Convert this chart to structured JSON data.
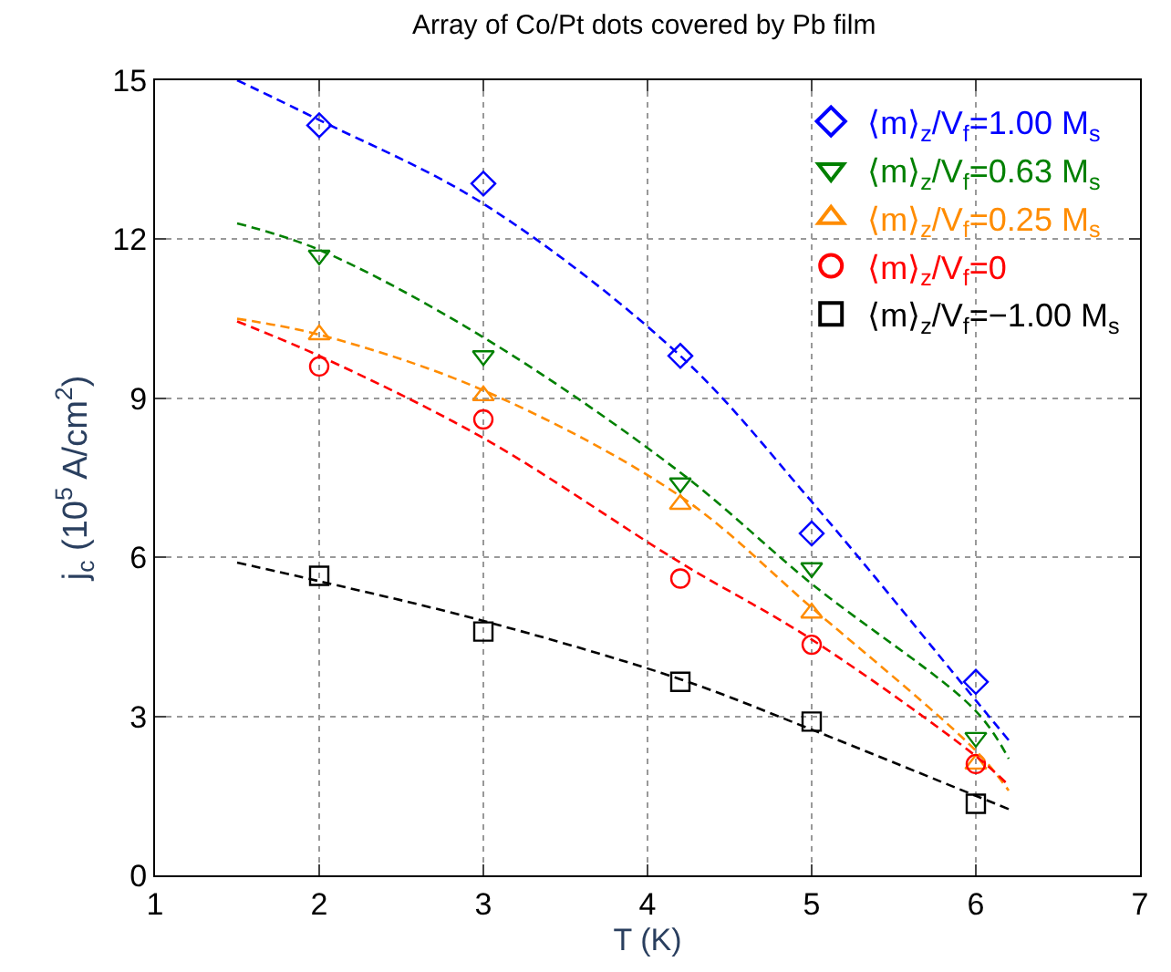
{
  "chart_data": {
    "type": "scatter",
    "title": "Array of Co/Pt dots covered by Pb film",
    "xlabel": "T (K)",
    "ylabel": "j$_{c}$ (10$^{5}$ A/cm$^{2}$)",
    "x": [
      2,
      3,
      4.2,
      5,
      6
    ],
    "series": [
      {
        "name": "⟨m⟩$_{z}$/V$_{f}$=1.00 M$_{s}$",
        "color": "#0000ff",
        "marker": "diamond",
        "values": [
          14.15,
          13.05,
          9.8,
          6.45,
          3.65
        ]
      },
      {
        "name": "⟨m⟩$_{z}$/V$_{f}$=0.63 M$_{s}$",
        "color": "#008000",
        "marker": "triangle-down",
        "values": [
          11.7,
          9.8,
          7.4,
          5.8,
          2.6
        ]
      },
      {
        "name": "⟨m⟩$_{z}$/V$_{f}$=0.25 M$_{s}$",
        "color": "#ff8c00",
        "marker": "triangle",
        "values": [
          10.2,
          9.05,
          7.0,
          4.95,
          2.1
        ]
      },
      {
        "name": "⟨m⟩$_{z}$/V$_{f}$=0",
        "color": "#ff0000",
        "marker": "circle",
        "values": [
          9.6,
          8.6,
          5.6,
          4.35,
          2.1
        ]
      },
      {
        "name": "⟨m⟩$_{z}$/V$_{f}$=−1.00 M$_{s}$",
        "color": "#000000",
        "marker": "square",
        "values": [
          5.65,
          4.6,
          3.65,
          2.9,
          1.35
        ]
      },
      {
        "type": "line",
        "color": "#0000ff",
        "line_style": "dashed",
        "x": [
          1.5,
          2,
          3,
          4.2,
          5,
          6,
          6.2
        ],
        "values": [
          15.0,
          14.25,
          12.67,
          9.8,
          7.05,
          3.3,
          2.55
        ]
      },
      {
        "type": "line",
        "color": "#008000",
        "line_style": "dashed",
        "x": [
          1.5,
          2,
          3,
          4.2,
          5,
          6,
          6.2
        ],
        "values": [
          12.3,
          11.8,
          10.15,
          7.6,
          5.5,
          3.1,
          2.2
        ]
      },
      {
        "type": "line",
        "color": "#ff8c00",
        "line_style": "dashed",
        "x": [
          1.5,
          2,
          3,
          4.2,
          5,
          6,
          6.2
        ],
        "values": [
          10.5,
          10.2,
          9.15,
          7.15,
          5.05,
          2.35,
          1.6
        ]
      },
      {
        "type": "line",
        "color": "#ff0000",
        "line_style": "dashed",
        "x": [
          1.5,
          2,
          3,
          4.2,
          5,
          6,
          6.2
        ],
        "values": [
          10.45,
          9.8,
          8.25,
          5.9,
          4.45,
          2.25,
          1.7
        ]
      },
      {
        "type": "line",
        "color": "#000000",
        "line_style": "dashed",
        "x": [
          1.5,
          2,
          3,
          4.2,
          5,
          6,
          6.2
        ],
        "values": [
          5.9,
          5.55,
          4.8,
          3.7,
          2.75,
          1.5,
          1.25
        ]
      }
    ],
    "xlim": [
      1,
      7
    ],
    "xticks": [
      1,
      2,
      3,
      4,
      5,
      6,
      7
    ],
    "ylim": [
      0,
      15
    ],
    "yticks": [
      0,
      3,
      6,
      9,
      12,
      15
    ],
    "grid": true,
    "legend": "top right"
  }
}
